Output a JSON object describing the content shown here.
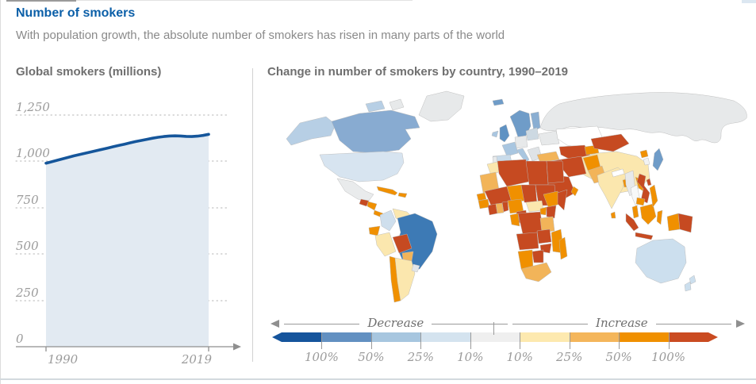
{
  "header": {
    "title": "Number of smokers",
    "subtitle": "With population growth, the absolute number of smokers has risen in many parts of the world"
  },
  "colors": {
    "title_blue": "#0b5fa8",
    "line_blue": "#15569b",
    "area_fill": "#e2eaf2",
    "axis_gray": "#8f8f8f"
  },
  "chart_data": [
    {
      "type": "area",
      "title": "Global smokers (millions)",
      "xlabel": "",
      "ylabel": "Global smokers (millions)",
      "ylim": [
        0,
        1250
      ],
      "grid": "horizontal-dotted",
      "ytick_labels": [
        "1,250",
        "1,000",
        "750",
        "500",
        "250",
        "0"
      ],
      "xtick_labels": [
        "1990",
        "2019"
      ],
      "x": [
        1990,
        1991,
        1992,
        1993,
        1994,
        1995,
        1996,
        1997,
        1998,
        1999,
        2000,
        2001,
        2002,
        2003,
        2004,
        2005,
        2006,
        2007,
        2008,
        2009,
        2010,
        2011,
        2012,
        2013,
        2014,
        2015,
        2016,
        2017,
        2018,
        2019
      ],
      "values": [
        990,
        998,
        1006,
        1014,
        1022,
        1030,
        1037,
        1044,
        1051,
        1058,
        1065,
        1072,
        1079,
        1086,
        1093,
        1100,
        1107,
        1113,
        1119,
        1125,
        1130,
        1134,
        1137,
        1138,
        1137,
        1135,
        1134,
        1136,
        1140,
        1146
      ],
      "line_color": "#15569b",
      "fill_color": "#e2eaf2"
    },
    {
      "type": "heatmap",
      "subtype": "choropleth-world-map",
      "title": "Change in number of smokers by country, 1990–2019",
      "legend": {
        "decrease_label": "Decrease",
        "increase_label": "Increase",
        "tick_labels": [
          "100%",
          "50%",
          "25%",
          "10%",
          "10%",
          "25%",
          "50%",
          "100%"
        ],
        "segment_colors": [
          "#15549c",
          "#6290c1",
          "#a7c6df",
          "#d4e3ef",
          "#efefef",
          "#fde9af",
          "#f4b65b",
          "#f09000",
          "#ca4b21"
        ]
      },
      "region_colors": {
        "greenland": "#e7e9ea",
        "arctic-islands-west": "#b7cfe5",
        "arctic-islands-east": "#e7e9ea",
        "alaska": "#b7cfe5",
        "canada": "#88abd1",
        "usa": "#d7e4f0",
        "mexico": "#e9ebec",
        "guatemala": "#c64a21",
        "honduras-nicaragua": "#f09000",
        "costa-rica-panama": "#f09000",
        "cuba": "#f09000",
        "hispaniola": "#f09000",
        "colombia": "#cfdfed",
        "venezuela": "#fbe7ae",
        "guyanas": "#f09000",
        "ecuador": "#f09000",
        "peru": "#fbe7ae",
        "brazil": "#3d7ab5",
        "bolivia": "#c64a21",
        "paraguay": "#f2b459",
        "chile": "#f09000",
        "argentina": "#fbe7ae",
        "uruguay": "#e2e6e9",
        "iceland": "#6f9cc8",
        "ireland": "#a9c6e0",
        "uk": "#5f92c3",
        "nordics": "#6f9cc8",
        "finland": "#8aaed2",
        "france": "#a9c6e0",
        "iberia": "#c9dbea",
        "portugal": "#e9ebec",
        "germany-central-europe": "#e7e9ea",
        "italy": "#a9c6e0",
        "poland-baltics": "#cdd9e2",
        "balkans": "#dfe3e6",
        "ukraine-belarus": "#e7e9ea",
        "russia": "#e7e9ea",
        "turkey": "#f2b459",
        "kazakhstan": "#ffffff",
        "central-asia": "#c64a21",
        "kyrgyz-tajik": "#f09000",
        "mongolia": "#c64a21",
        "china": "#fbe7ae",
        "japan": "#6f9cc8",
        "north-korea": "#f09000",
        "south-korea": "#f2f3f3",
        "taiwan": "#c64a21",
        "syria-iraq": "#c64a21",
        "iran": "#c64a21",
        "saudi-peninsula": "#c64a21",
        "oman": "#f09000",
        "afghanistan": "#f09000",
        "pakistan": "#f2b459",
        "india": "#fbe7ae",
        "nepal": "#ffffff",
        "bangladesh": "#f09000",
        "sri-lanka": "#f09000",
        "myanmar": "#e7e9ea",
        "thailand": "#f7f8f8",
        "laos": "#f09000",
        "vietnam": "#c64a21",
        "cambodia": "#f09000",
        "malay-peninsula": "#f09000",
        "sumatra": "#c64a21",
        "java": "#c64a21",
        "borneo": "#f09000",
        "sulawesi": "#f09000",
        "philippines": "#f09000",
        "west-papua": "#f09000",
        "papua-new-guinea": "#c64a21",
        "australia": "#ccdfee",
        "new-zealand-north": "#ccdfee",
        "new-zealand-south": "#ccdfee",
        "morocco": "#fbe7ae",
        "wsahara-mauritania": "#f2b459",
        "algeria": "#c64a21",
        "libya": "#c64a21",
        "egypt": "#c64a21",
        "mali": "#c64a21",
        "niger": "#f09000",
        "chad": "#c64a21",
        "sudan": "#c64a21",
        "senegal": "#f09000",
        "guinea": "#f09000",
        "cote-divoire": "#c64a21",
        "ghana": "#f2b459",
        "togo-benin": "#c64a21",
        "nigeria": "#f09000",
        "cameroon": "#c64a21",
        "central-african-republic": "#fbe7ae",
        "ethiopia": "#f09000",
        "somalia": "#c64a21",
        "uganda": "#f09000",
        "kenya": "#c64a21",
        "drc": "#c64a21",
        "gabon-congo": "#f09000",
        "tanzania": "#f2b459",
        "angola": "#c64a21",
        "zambia": "#c64a21",
        "malawi-mozambique": "#f09000",
        "zimbabwe": "#c64a21",
        "namibia": "#f09000",
        "botswana": "#c64a21",
        "south-africa": "#f2b459",
        "madagascar": "#f09000"
      }
    }
  ]
}
